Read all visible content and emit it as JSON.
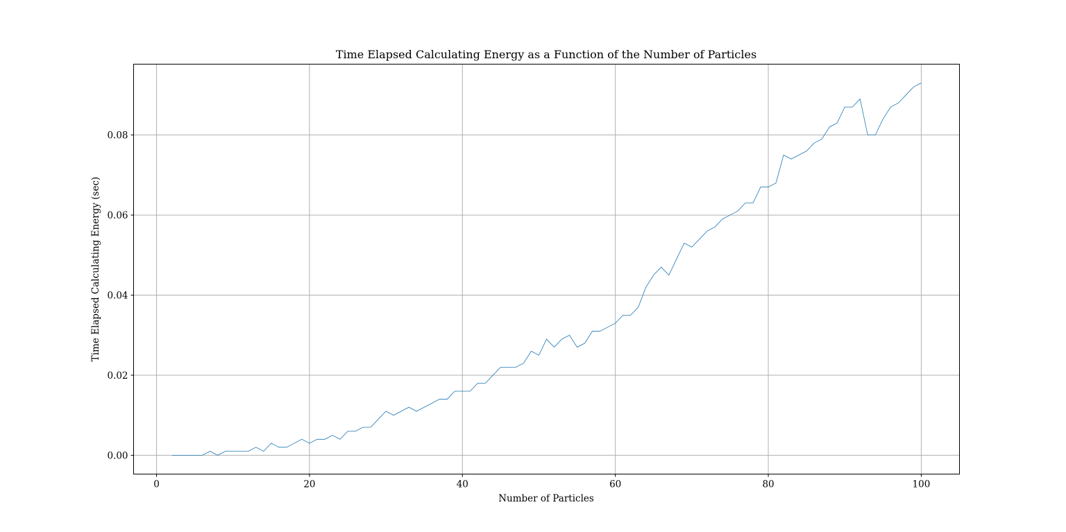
{
  "chart_data": {
    "type": "line",
    "title": "Time Elapsed Calculating Energy as a Function of the Number of Particles",
    "xlabel": "Number of Particles",
    "ylabel": "Time Elapsed Calculating Energy (sec)",
    "xlim": [
      -3,
      105
    ],
    "ylim": [
      -0.0047,
      0.0977
    ],
    "x_ticks": [
      0,
      20,
      40,
      60,
      80,
      100
    ],
    "x_tick_labels": [
      "0",
      "20",
      "40",
      "60",
      "80",
      "100"
    ],
    "y_ticks": [
      0,
      0.02,
      0.04,
      0.06,
      0.08
    ],
    "y_tick_labels": [
      "0.00",
      "0.02",
      "0.04",
      "0.06",
      "0.08"
    ],
    "grid": true,
    "legend": "none",
    "line_color": "#1f77b4",
    "series": [
      {
        "x": [
          2,
          3,
          4,
          5,
          6,
          7,
          8,
          9,
          10,
          11,
          12,
          13,
          14,
          15,
          16,
          17,
          18,
          19,
          20,
          21,
          22,
          23,
          24,
          25,
          26,
          27,
          28,
          29,
          30,
          31,
          32,
          33,
          34,
          35,
          36,
          37,
          38,
          39,
          40,
          41,
          42,
          43,
          44,
          45,
          46,
          47,
          48,
          49,
          50,
          51,
          52,
          53,
          54,
          55,
          56,
          57,
          58,
          59,
          60,
          61,
          62,
          63,
          64,
          65,
          66,
          67,
          68,
          69,
          70,
          71,
          72,
          73,
          74,
          75,
          76,
          77,
          78,
          79,
          80,
          81,
          82,
          83,
          84,
          85,
          86,
          87,
          88,
          89,
          90,
          91,
          92,
          93,
          94,
          95,
          96,
          97,
          98,
          99,
          100
        ],
        "values": [
          0,
          0,
          0,
          0,
          0,
          0.001,
          0,
          0.001,
          0.001,
          0.001,
          0.001,
          0.002,
          0.001,
          0.003,
          0.002,
          0.002,
          0.003,
          0.004,
          0.003,
          0.004,
          0.004,
          0.005,
          0.004,
          0.006,
          0.006,
          0.007,
          0.007,
          0.009,
          0.011,
          0.01,
          0.011,
          0.012,
          0.011,
          0.012,
          0.013,
          0.014,
          0.014,
          0.016,
          0.016,
          0.016,
          0.018,
          0.018,
          0.02,
          0.022,
          0.022,
          0.022,
          0.023,
          0.026,
          0.025,
          0.029,
          0.027,
          0.029,
          0.03,
          0.027,
          0.028,
          0.031,
          0.031,
          0.032,
          0.033,
          0.035,
          0.035,
          0.037,
          0.042,
          0.045,
          0.047,
          0.045,
          0.049,
          0.053,
          0.052,
          0.054,
          0.056,
          0.057,
          0.059,
          0.06,
          0.061,
          0.063,
          0.063,
          0.067,
          0.067,
          0.068,
          0.075,
          0.074,
          0.075,
          0.076,
          0.078,
          0.079,
          0.082,
          0.083,
          0.087,
          0.087,
          0.089,
          0.08,
          0.08,
          0.084,
          0.087,
          0.088,
          0.09,
          0.092,
          0.093
        ]
      }
    ]
  }
}
